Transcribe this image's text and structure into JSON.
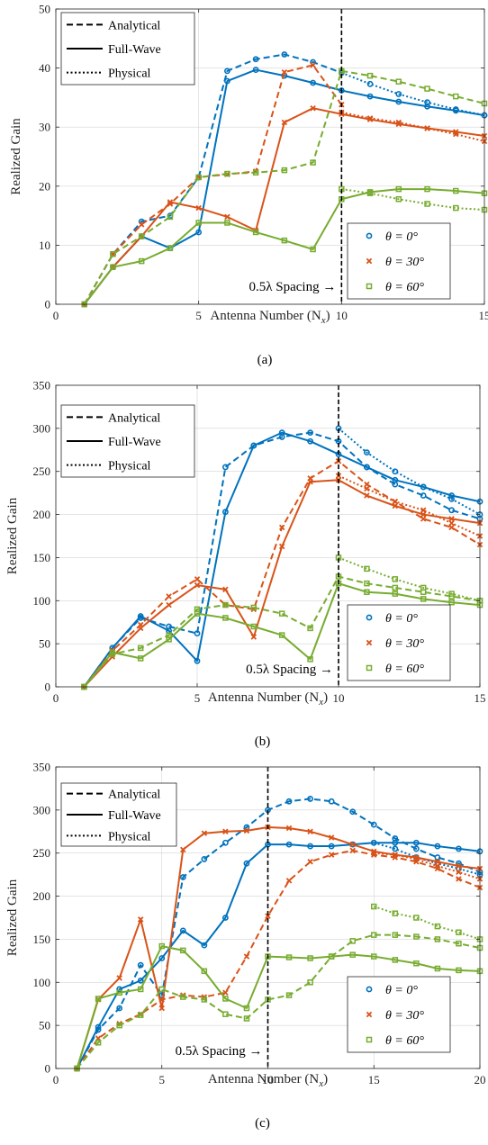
{
  "colors": {
    "theta0": "#0072BD",
    "theta30": "#D95319",
    "theta60": "#77AC30"
  },
  "legend_styles": {
    "entries": [
      "Analytical",
      "Full-Wave",
      "Physical"
    ]
  },
  "legend_theta": {
    "entries": [
      "θ = 0°",
      "θ = 30°",
      "θ = 60°"
    ]
  },
  "annotation": "0.5λ Spacing →",
  "chart_data": [
    {
      "type": "line",
      "caption": "(a)",
      "xlabel": "Antenna Number  (N",
      "xlabel_sub": "x",
      "xlabel_close": ")",
      "ylabel": "Realized Gain",
      "xlim": [
        0,
        15
      ],
      "ylim": [
        0,
        50
      ],
      "xticks": [
        0,
        5,
        10,
        15
      ],
      "yticks": [
        0,
        10,
        20,
        30,
        40,
        50
      ],
      "vline_x": 10,
      "grid": true,
      "series": [
        {
          "theta": "θ = 0°",
          "style": "Analytical",
          "x": [
            1,
            2,
            3,
            4,
            5,
            6,
            7,
            8,
            9,
            10
          ],
          "y": [
            0,
            8.5,
            14,
            15,
            21.5,
            39.5,
            41.5,
            42.3,
            41,
            39.2
          ]
        },
        {
          "theta": "θ = 0°",
          "style": "Full-Wave",
          "x": [
            1,
            2,
            3,
            4,
            5,
            6,
            7,
            8,
            9,
            10,
            11,
            12,
            13,
            14,
            15
          ],
          "y": [
            0,
            6.3,
            11.5,
            9.5,
            12.2,
            37.8,
            39.7,
            38.7,
            37.5,
            36.2,
            35.2,
            34.3,
            33.5,
            32.8,
            32
          ]
        },
        {
          "theta": "θ = 0°",
          "style": "Physical",
          "x": [
            10,
            11,
            12,
            13,
            14,
            15
          ],
          "y": [
            39.2,
            37.3,
            35.6,
            34.2,
            33,
            32
          ]
        },
        {
          "theta": "θ = 30°",
          "style": "Analytical",
          "x": [
            1,
            2,
            3,
            4,
            5,
            6,
            7,
            8,
            9,
            10
          ],
          "y": [
            0,
            8.5,
            13.5,
            17,
            21.5,
            22,
            22.5,
            39.3,
            40.5,
            33.8
          ]
        },
        {
          "theta": "θ = 30°",
          "style": "Full-Wave",
          "x": [
            1,
            2,
            3,
            4,
            5,
            6,
            7,
            8,
            9,
            10,
            11,
            12,
            13,
            14,
            15
          ],
          "y": [
            0,
            6.3,
            11.5,
            17.3,
            16.3,
            14.8,
            12.5,
            30.8,
            33.2,
            32.2,
            31.3,
            30.5,
            29.8,
            29.2,
            28.5
          ]
        },
        {
          "theta": "θ = 30°",
          "style": "Physical",
          "x": [
            10,
            11,
            12,
            13,
            14,
            15
          ],
          "y": [
            32.5,
            31.5,
            30.8,
            29.8,
            28.8,
            27.6
          ]
        },
        {
          "theta": "θ = 60°",
          "style": "Analytical",
          "x": [
            1,
            2,
            3,
            4,
            5,
            6,
            7,
            8,
            9,
            10,
            11,
            12,
            13,
            14,
            15
          ],
          "y": [
            0,
            8.5,
            11.5,
            14.8,
            21.5,
            22.1,
            22.3,
            22.7,
            24,
            39.5,
            38.7,
            37.7,
            36.5,
            35.2,
            34
          ]
        },
        {
          "theta": "θ = 60°",
          "style": "Full-Wave",
          "x": [
            1,
            2,
            3,
            4,
            5,
            6,
            7,
            8,
            9,
            10,
            11,
            12,
            13,
            14,
            15
          ],
          "y": [
            0,
            6.3,
            7.3,
            9.5,
            13.8,
            13.8,
            12.2,
            10.8,
            9.3,
            17.8,
            19,
            19.5,
            19.5,
            19.2,
            18.8
          ]
        },
        {
          "theta": "θ = 60°",
          "style": "Physical",
          "x": [
            10,
            11,
            12,
            13,
            14,
            15
          ],
          "y": [
            19.5,
            18.8,
            17.8,
            17,
            16.3,
            16
          ]
        }
      ]
    },
    {
      "type": "line",
      "caption": "(b)",
      "xlabel": "Antenna Number  (N",
      "xlabel_sub": "x",
      "xlabel_close": ")",
      "ylabel": "Realized Gain",
      "xlim": [
        0,
        15
      ],
      "ylim": [
        0,
        350
      ],
      "xticks": [
        0,
        5,
        10,
        15
      ],
      "yticks": [
        0,
        50,
        100,
        150,
        200,
        250,
        300,
        350
      ],
      "vline_x": 10,
      "grid": true,
      "series": [
        {
          "theta": "θ = 0°",
          "style": "Analytical",
          "x": [
            1,
            2,
            3,
            4,
            5,
            6,
            7,
            8,
            9,
            10,
            11,
            12,
            13,
            14,
            15
          ],
          "y": [
            0,
            45,
            80,
            70,
            62,
            255,
            280,
            290,
            295,
            285,
            255,
            235,
            222,
            205,
            195
          ]
        },
        {
          "theta": "θ = 0°",
          "style": "Full-Wave",
          "x": [
            1,
            2,
            3,
            4,
            5,
            6,
            7,
            8,
            9,
            10,
            11,
            12,
            13,
            14,
            15
          ],
          "y": [
            0,
            45,
            82,
            65,
            30,
            203,
            280,
            295,
            285,
            270,
            255,
            240,
            232,
            222,
            215
          ]
        },
        {
          "theta": "θ = 0°",
          "style": "Physical",
          "x": [
            10,
            11,
            12,
            13,
            14,
            15
          ],
          "y": [
            300,
            272,
            250,
            232,
            218,
            200
          ]
        },
        {
          "theta": "θ = 30°",
          "style": "Analytical",
          "x": [
            1,
            2,
            3,
            4,
            5,
            6,
            7,
            8,
            9,
            10,
            11,
            12,
            13,
            14,
            15
          ],
          "y": [
            0,
            42,
            72,
            105,
            125,
            95,
            90,
            185,
            242,
            262,
            235,
            215,
            195,
            185,
            165
          ]
        },
        {
          "theta": "θ = 30°",
          "style": "Full-Wave",
          "x": [
            1,
            2,
            3,
            4,
            5,
            6,
            7,
            8,
            9,
            10,
            11,
            12,
            13,
            14,
            15
          ],
          "y": [
            0,
            35,
            68,
            95,
            118,
            113,
            58,
            163,
            238,
            240,
            222,
            210,
            200,
            195,
            190
          ]
        },
        {
          "theta": "θ = 30°",
          "style": "Physical",
          "x": [
            10,
            11,
            12,
            13,
            14,
            15
          ],
          "y": [
            245,
            230,
            215,
            205,
            190,
            175
          ]
        },
        {
          "theta": "θ = 60°",
          "style": "Analytical",
          "x": [
            1,
            2,
            3,
            4,
            5,
            6,
            7,
            8,
            9,
            10,
            11,
            12,
            13,
            14,
            15
          ],
          "y": [
            0,
            38,
            45,
            60,
            90,
            95,
            92,
            85,
            68,
            128,
            120,
            115,
            110,
            105,
            100
          ]
        },
        {
          "theta": "θ = 60°",
          "style": "Full-Wave",
          "x": [
            1,
            2,
            3,
            4,
            5,
            6,
            7,
            8,
            9,
            10,
            11,
            12,
            13,
            14,
            15
          ],
          "y": [
            0,
            40,
            33,
            55,
            85,
            80,
            70,
            60,
            32,
            120,
            110,
            108,
            102,
            98,
            95
          ]
        },
        {
          "theta": "θ = 60°",
          "style": "Physical",
          "x": [
            10,
            11,
            12,
            13,
            14,
            15
          ],
          "y": [
            150,
            137,
            125,
            115,
            108,
            100
          ]
        }
      ]
    },
    {
      "type": "line",
      "caption": "(c)",
      "xlabel": "Antenna Number  (N",
      "xlabel_sub": "x",
      "xlabel_close": ")",
      "ylabel": "Realized Gain",
      "xlim": [
        0,
        20
      ],
      "ylim": [
        0,
        350
      ],
      "xticks": [
        0,
        5,
        10,
        15,
        20
      ],
      "yticks": [
        0,
        50,
        100,
        150,
        200,
        250,
        300,
        350
      ],
      "vline_x": 10,
      "grid": true,
      "series": [
        {
          "theta": "θ = 0°",
          "style": "Analytical",
          "x": [
            1,
            2,
            3,
            4,
            5,
            6,
            7,
            8,
            9,
            10,
            11,
            12,
            13,
            14,
            15,
            16,
            17,
            18,
            19,
            20
          ],
          "y": [
            0,
            45,
            70,
            120,
            85,
            222,
            243,
            262,
            280,
            300,
            310,
            313,
            310,
            298,
            283,
            267,
            255,
            245,
            238,
            228
          ]
        },
        {
          "theta": "θ = 0°",
          "style": "Full-Wave",
          "x": [
            1,
            2,
            3,
            4,
            5,
            6,
            7,
            8,
            9,
            10,
            11,
            12,
            13,
            14,
            15,
            16,
            17,
            18,
            19,
            20
          ],
          "y": [
            0,
            48,
            92,
            102,
            128,
            160,
            143,
            175,
            238,
            260,
            260,
            258,
            258,
            260,
            262,
            262,
            262,
            258,
            255,
            252
          ]
        },
        {
          "theta": "θ = 0°",
          "style": "Physical",
          "x": [
            15,
            16,
            17,
            18,
            19,
            20
          ],
          "y": [
            262,
            255,
            245,
            238,
            232,
            225
          ]
        },
        {
          "theta": "θ = 30°",
          "style": "Analytical",
          "x": [
            1,
            2,
            3,
            4,
            5,
            6,
            7,
            8,
            9,
            10,
            11,
            12,
            13,
            14,
            15,
            16,
            17,
            18,
            19,
            20
          ],
          "y": [
            0,
            35,
            52,
            63,
            80,
            85,
            83,
            88,
            130,
            177,
            218,
            240,
            248,
            253,
            248,
            245,
            240,
            232,
            220,
            210
          ]
        },
        {
          "theta": "θ = 30°",
          "style": "Full-Wave",
          "x": [
            1,
            2,
            3,
            4,
            5,
            6,
            7,
            8,
            9,
            10,
            11,
            12,
            13,
            14,
            15,
            16,
            17,
            18,
            19,
            20
          ],
          "y": [
            0,
            80,
            105,
            173,
            70,
            254,
            273,
            275,
            276,
            280,
            279,
            275,
            268,
            260,
            252,
            248,
            245,
            240,
            235,
            232
          ]
        },
        {
          "theta": "θ = 30°",
          "style": "Physical",
          "x": [
            15,
            16,
            17,
            18,
            19,
            20
          ],
          "y": [
            250,
            248,
            243,
            235,
            228,
            220
          ]
        },
        {
          "theta": "θ = 60°",
          "style": "Analytical",
          "x": [
            1,
            2,
            3,
            4,
            5,
            6,
            7,
            8,
            9,
            10,
            11,
            12,
            13,
            14,
            15,
            16,
            17,
            18,
            19,
            20
          ],
          "y": [
            0,
            30,
            50,
            62,
            92,
            83,
            80,
            63,
            58,
            80,
            85,
            100,
            130,
            148,
            155,
            155,
            153,
            150,
            145,
            140
          ]
        },
        {
          "theta": "θ = 60°",
          "style": "Full-Wave",
          "x": [
            1,
            2,
            3,
            4,
            5,
            6,
            7,
            8,
            9,
            10,
            11,
            12,
            13,
            14,
            15,
            16,
            17,
            18,
            19,
            20
          ],
          "y": [
            0,
            81,
            88,
            92,
            142,
            137,
            113,
            81,
            70,
            130,
            129,
            128,
            130,
            132,
            130,
            126,
            122,
            116,
            114,
            113
          ]
        },
        {
          "theta": "θ = 60°",
          "style": "Physical",
          "x": [
            15,
            16,
            17,
            18,
            19,
            20
          ],
          "y": [
            188,
            180,
            175,
            165,
            158,
            150
          ]
        }
      ]
    }
  ]
}
